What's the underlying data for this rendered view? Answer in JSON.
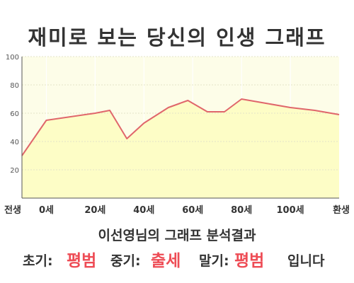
{
  "title": "재미로 보는 당신의 인생 그래프",
  "subtitle": "이선영님의 그래프 분석결과",
  "result": {
    "early_label": "초기:",
    "early_value": "평범",
    "mid_label": "중기:",
    "mid_value": "출세",
    "late_label": "말기:",
    "late_value": "평범",
    "ending": "입니다"
  },
  "colors": {
    "line": "#e0666b",
    "fill": "#fdfdc6",
    "plot_background": "#fdfde8",
    "highlight": "#ee4c55"
  },
  "chart_data": {
    "type": "area",
    "title": "재미로 보는 당신의 인생 그래프",
    "x": [
      -10,
      0,
      20,
      26,
      33,
      40,
      50,
      58,
      66,
      73,
      80,
      90,
      100,
      110,
      120
    ],
    "x_ticks": [
      {
        "x": -10,
        "label": "전생"
      },
      {
        "x": 0,
        "label": "0세"
      },
      {
        "x": 20,
        "label": "20세"
      },
      {
        "x": 40,
        "label": "40세"
      },
      {
        "x": 60,
        "label": "60세"
      },
      {
        "x": 80,
        "label": "80세"
      },
      {
        "x": 100,
        "label": "100세"
      },
      {
        "x": 120,
        "label": "환생"
      }
    ],
    "series": [
      {
        "values": [
          30,
          55,
          60,
          62,
          42,
          53,
          64,
          69,
          61,
          61,
          70,
          67,
          64,
          62,
          59
        ]
      }
    ],
    "y_ticks": [
      20,
      40,
      60,
      80,
      100
    ],
    "ylim": [
      0,
      100
    ],
    "xlim": [
      -10,
      120
    ],
    "grid": true,
    "legend": "none"
  }
}
